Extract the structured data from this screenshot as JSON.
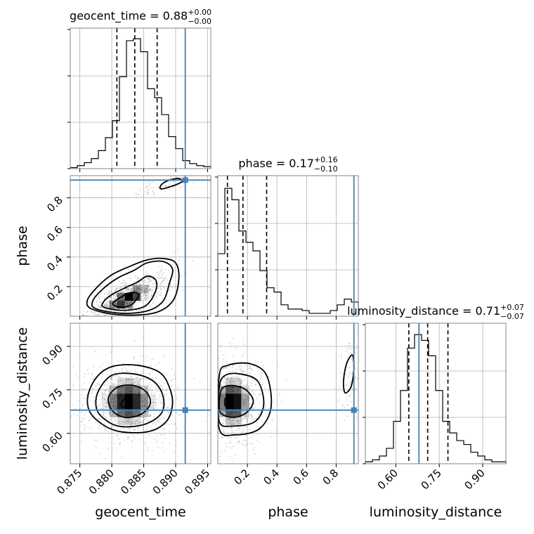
{
  "chart_data": {
    "type": "corner",
    "colors": {
      "truth": "#4682b4",
      "hist": "#000000",
      "quantile": "#000000",
      "grid": "#b0b0b0",
      "frame": "#777777"
    },
    "parameters": [
      {
        "name": "geocent_time",
        "xlabel": "geocent_time",
        "title_prefix": "geocent_time = 0.88",
        "title_sup": "+0.00",
        "title_sub": "−0.00",
        "range": [
          0.8735,
          0.8955
        ],
        "ticks": [
          0.875,
          0.88,
          0.885,
          0.89,
          0.895
        ],
        "tick_labels": [
          "0.875",
          "0.880",
          "0.885",
          "0.890",
          "0.895"
        ],
        "truth": 0.8915,
        "quantiles": [
          0.8808,
          0.8836,
          0.8871
        ],
        "hist_edges_start": 0.8735,
        "hist_bin_width": 0.0011,
        "hist_counts": [
          1,
          3,
          6,
          10,
          18,
          31,
          48,
          92,
          128,
          130,
          117,
          80,
          71,
          54,
          32,
          20,
          8,
          5,
          3,
          2
        ],
        "hist_max": 135
      },
      {
        "name": "phase",
        "xlabel": "phase",
        "ylabel": "phase",
        "title_prefix": "phase = 0.17",
        "title_sup": "+0.16",
        "title_sub": "−0.10",
        "range": [
          0.0,
          0.95
        ],
        "ticks": [
          0.2,
          0.4,
          0.6,
          0.8
        ],
        "tick_labels": [
          "0.2",
          "0.4",
          "0.6",
          "0.8"
        ],
        "y_ticks": [
          0.2,
          0.4,
          0.6,
          0.8
        ],
        "y_tick_labels": [
          "0.2",
          "0.4",
          "0.6",
          "0.8"
        ],
        "truth": 0.92,
        "quantiles": [
          0.065,
          0.17,
          0.33
        ],
        "hist_edges_start": 0.0,
        "hist_bin_width": 0.0475,
        "hist_counts": [
          44,
          90,
          82,
          60,
          52,
          46,
          32,
          20,
          17,
          8,
          5,
          5,
          4,
          2,
          2,
          2,
          4,
          8,
          12,
          10
        ],
        "hist_max": 95
      },
      {
        "name": "luminosity_distance",
        "xlabel": "luminosity_distance",
        "ylabel": "luminosity_distance",
        "title_prefix": "luminosity_distance = 0.71",
        "title_sup": "+0.07",
        "title_sub": "−0.07",
        "range": [
          0.495,
          0.98
        ],
        "ticks": [
          0.6,
          0.75,
          0.9
        ],
        "tick_labels": [
          "0.60",
          "0.75",
          "0.90"
        ],
        "y_ticks": [
          0.6,
          0.75,
          0.9
        ],
        "y_tick_labels": [
          "0.60",
          "0.75",
          "0.90"
        ],
        "truth": 0.68,
        "quantiles": [
          0.645,
          0.71,
          0.78
        ],
        "hist_edges_start": 0.495,
        "hist_bin_width": 0.02425,
        "hist_counts": [
          1,
          2,
          4,
          8,
          22,
          38,
          60,
          67,
          64,
          56,
          38,
          22,
          16,
          12,
          10,
          6,
          4,
          2,
          1,
          1
        ],
        "hist_max": 70
      }
    ],
    "pairs": [
      {
        "x_param": "geocent_time",
        "y_param": "phase",
        "modes": [
          {
            "cx": 0.8825,
            "cy": 0.12,
            "sx": 0.0024,
            "sy": 0.065,
            "rho": 0.72,
            "weight": 0.9
          },
          {
            "cx": 0.8885,
            "cy": 0.89,
            "sx": 0.0013,
            "sy": 0.025,
            "rho": 0.6,
            "weight": 0.1
          }
        ],
        "contours": [
          [
            [
              0.8803,
              0.075
            ],
            [
              0.8815,
              0.06
            ],
            [
              0.883,
              0.075
            ],
            [
              0.8838,
              0.11
            ],
            [
              0.8842,
              0.14
            ],
            [
              0.8838,
              0.16
            ],
            [
              0.8826,
              0.155
            ],
            [
              0.8813,
              0.125
            ],
            [
              0.8803,
              0.095
            ]
          ],
          [
            [
              0.8788,
              0.06
            ],
            [
              0.8815,
              0.04
            ],
            [
              0.8845,
              0.055
            ],
            [
              0.886,
              0.1
            ],
            [
              0.887,
              0.19
            ],
            [
              0.8868,
              0.25
            ],
            [
              0.8855,
              0.27
            ],
            [
              0.884,
              0.23
            ],
            [
              0.882,
              0.19
            ],
            [
              0.8798,
              0.14
            ],
            [
              0.8786,
              0.09
            ]
          ],
          [
            [
              0.8775,
              0.05
            ],
            [
              0.8815,
              0.02
            ],
            [
              0.8855,
              0.035
            ],
            [
              0.888,
              0.1
            ],
            [
              0.889,
              0.22
            ],
            [
              0.8895,
              0.32
            ],
            [
              0.888,
              0.37
            ],
            [
              0.8855,
              0.36
            ],
            [
              0.8835,
              0.31
            ],
            [
              0.881,
              0.26
            ],
            [
              0.8785,
              0.18
            ],
            [
              0.877,
              0.1
            ]
          ],
          [
            [
              0.8768,
              0.05
            ],
            [
              0.881,
              0.01
            ],
            [
              0.8865,
              0.02
            ],
            [
              0.8895,
              0.1
            ],
            [
              0.8905,
              0.25
            ],
            [
              0.89,
              0.36
            ],
            [
              0.888,
              0.39
            ],
            [
              0.8855,
              0.38
            ],
            [
              0.883,
              0.34
            ],
            [
              0.88,
              0.28
            ],
            [
              0.8778,
              0.2
            ],
            [
              0.8762,
              0.11
            ]
          ],
          [
            [
              0.8877,
              0.86
            ],
            [
              0.8895,
              0.88
            ],
            [
              0.891,
              0.91
            ],
            [
              0.8905,
              0.93
            ],
            [
              0.889,
              0.92
            ],
            [
              0.8878,
              0.89
            ]
          ]
        ]
      },
      {
        "x_param": "geocent_time",
        "y_param": "luminosity_distance",
        "modes": [
          {
            "cx": 0.8826,
            "cy": 0.71,
            "sx": 0.0027,
            "sy": 0.055,
            "rho": 0.0,
            "weight": 1.0
          }
        ],
        "contours": [
          [
            [
              0.8815,
              0.695
            ],
            [
              0.8825,
              0.69
            ],
            [
              0.8832,
              0.705
            ],
            [
              0.8828,
              0.72
            ],
            [
              0.8818,
              0.715
            ]
          ],
          [
            [
              0.88,
              0.68
            ],
            [
              0.882,
              0.655
            ],
            [
              0.8845,
              0.665
            ],
            [
              0.886,
              0.7
            ],
            [
              0.8855,
              0.74
            ],
            [
              0.8835,
              0.765
            ],
            [
              0.881,
              0.76
            ],
            [
              0.8795,
              0.725
            ]
          ],
          [
            [
              0.8783,
              0.66
            ],
            [
              0.881,
              0.625
            ],
            [
              0.885,
              0.63
            ],
            [
              0.8878,
              0.67
            ],
            [
              0.888,
              0.73
            ],
            [
              0.8865,
              0.78
            ],
            [
              0.8835,
              0.805
            ],
            [
              0.88,
              0.8
            ],
            [
              0.878,
              0.75
            ],
            [
              0.8775,
              0.7
            ]
          ],
          [
            [
              0.877,
              0.66
            ],
            [
              0.8805,
              0.61
            ],
            [
              0.8855,
              0.605
            ],
            [
              0.8885,
              0.64
            ],
            [
              0.8895,
              0.7
            ],
            [
              0.889,
              0.76
            ],
            [
              0.8875,
              0.81
            ],
            [
              0.884,
              0.835
            ],
            [
              0.88,
              0.83
            ],
            [
              0.8775,
              0.79
            ],
            [
              0.8762,
              0.72
            ]
          ]
        ]
      },
      {
        "x_param": "phase",
        "y_param": "luminosity_distance",
        "modes": [
          {
            "cx": 0.1,
            "cy": 0.71,
            "sx": 0.08,
            "sy": 0.055,
            "rho": 0.0,
            "weight": 0.9
          },
          {
            "cx": 0.89,
            "cy": 0.8,
            "sx": 0.03,
            "sy": 0.05,
            "rho": 0.3,
            "weight": 0.1
          }
        ],
        "contours": [
          [
            [
              0.05,
              0.695
            ],
            [
              0.08,
              0.69
            ],
            [
              0.1,
              0.71
            ],
            [
              0.08,
              0.725
            ],
            [
              0.05,
              0.72
            ]
          ],
          [
            [
              0.02,
              0.67
            ],
            [
              0.1,
              0.655
            ],
            [
              0.19,
              0.67
            ],
            [
              0.24,
              0.71
            ],
            [
              0.19,
              0.75
            ],
            [
              0.1,
              0.765
            ],
            [
              0.03,
              0.755
            ],
            [
              0.01,
              0.71
            ]
          ],
          [
            [
              0.01,
              0.64
            ],
            [
              0.1,
              0.625
            ],
            [
              0.25,
              0.64
            ],
            [
              0.31,
              0.7
            ],
            [
              0.27,
              0.78
            ],
            [
              0.15,
              0.805
            ],
            [
              0.05,
              0.8
            ],
            [
              0.01,
              0.76
            ]
          ],
          [
            [
              0.01,
              0.615
            ],
            [
              0.12,
              0.595
            ],
            [
              0.28,
              0.615
            ],
            [
              0.36,
              0.69
            ],
            [
              0.33,
              0.8
            ],
            [
              0.22,
              0.84
            ],
            [
              0.07,
              0.835
            ],
            [
              0.01,
              0.8
            ]
          ],
          [
            [
              0.86,
              0.74
            ],
            [
              0.9,
              0.76
            ],
            [
              0.92,
              0.82
            ],
            [
              0.91,
              0.87
            ],
            [
              0.87,
              0.84
            ],
            [
              0.85,
              0.78
            ]
          ]
        ]
      }
    ]
  }
}
